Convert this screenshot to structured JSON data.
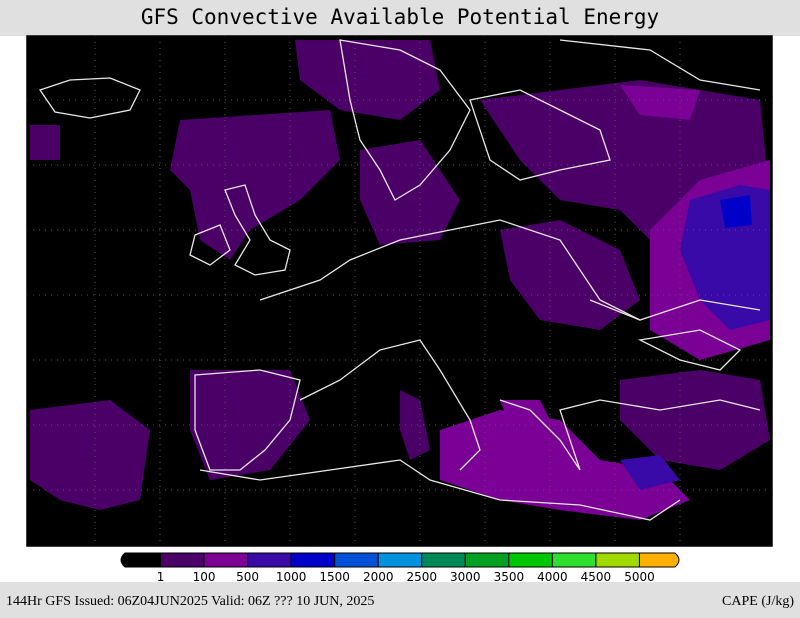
{
  "header": {
    "title": "GFS Convective Available Potential Energy"
  },
  "legend": {
    "ticks": [
      1,
      100,
      500,
      1000,
      1500,
      2000,
      2500,
      3000,
      3500,
      4000,
      4500,
      5000
    ],
    "colors": [
      "#000000",
      "#4b0068",
      "#7a0096",
      "#3a0aa8",
      "#0000c8",
      "#0050d8",
      "#0090e0",
      "#008a5a",
      "#00a020",
      "#00c800",
      "#30e030",
      "#a0d800",
      "#ffb000"
    ]
  },
  "footer": {
    "left": "144Hr GFS Issued: 06Z04JUN2025 Valid: 06Z ??? 10 JUN, 2025",
    "right": "CAPE (J/kg)"
  }
}
